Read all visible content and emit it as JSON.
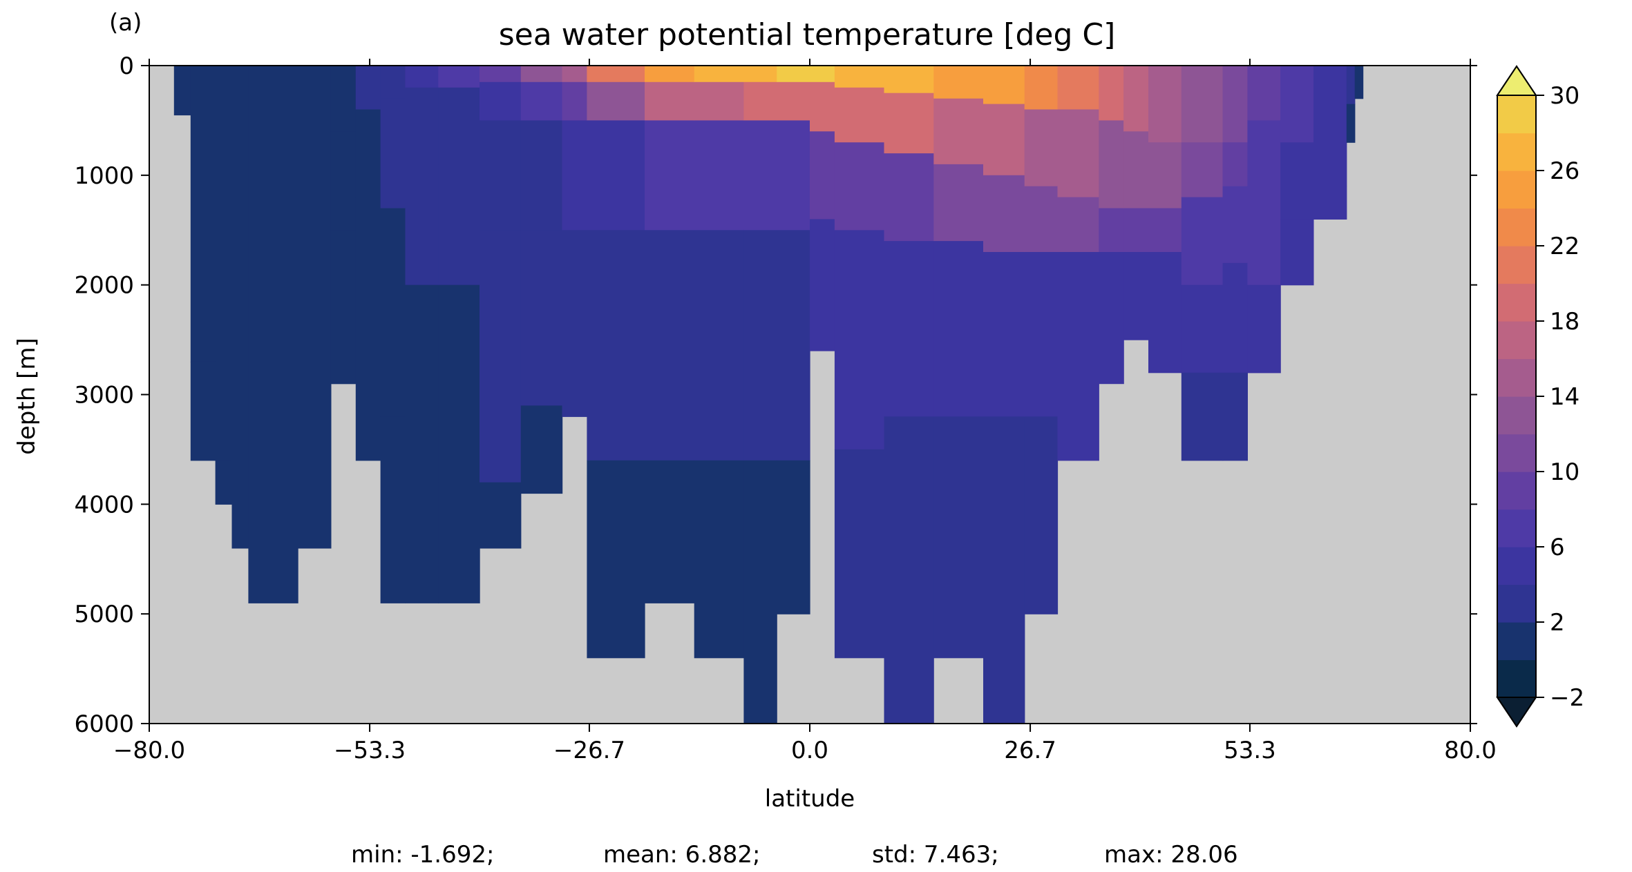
{
  "chart_data": {
    "type": "heatmap",
    "panel_label": "(a)",
    "title": "sea water potential temperature [deg C]",
    "xlabel": "latitude",
    "ylabel": "depth [m]",
    "xlim": [
      -80,
      80
    ],
    "ylim": [
      6000,
      0
    ],
    "x_ticks": [
      -80,
      -53.3,
      -26.7,
      0,
      26.7,
      53.3,
      80
    ],
    "x_tick_labels": [
      "−80.0",
      "−53.3",
      "−26.7",
      "0.0",
      "26.7",
      "53.3",
      "80.0"
    ],
    "y_ticks": [
      0,
      1000,
      2000,
      3000,
      4000,
      5000,
      6000
    ],
    "y_tick_labels": [
      "0",
      "1000",
      "2000",
      "3000",
      "4000",
      "5000",
      "6000"
    ],
    "missing_color": "#cbcbcb",
    "colorbar": {
      "levels": [
        -2,
        0,
        2,
        4,
        6,
        8,
        10,
        12,
        14,
        16,
        18,
        20,
        22,
        24,
        26,
        28,
        30
      ],
      "tick_values": [
        -2,
        2,
        6,
        10,
        14,
        18,
        22,
        26,
        30
      ],
      "tick_labels": [
        "−2",
        "2",
        "6",
        "10",
        "14",
        "18",
        "22",
        "26",
        "30"
      ],
      "colors": [
        "#0a2a4a",
        "#18336e",
        "#2f3492",
        "#3c35a0",
        "#4e3aa6",
        "#623fa2",
        "#7a4a9c",
        "#8e5595",
        "#a55c8e",
        "#bc6483",
        "#d26c73",
        "#e47a5e",
        "#f08a4a",
        "#f79e3e",
        "#f8b33e",
        "#f2cb47",
        "#eadf52"
      ],
      "under_color": "#0b1f33",
      "over_color": "#eded70",
      "extend": "both"
    },
    "sections": [
      {
        "lat": [
          -77,
          -75
        ],
        "profile": [
          [
            0,
            0.3
          ],
          [
            450,
            0.2
          ]
        ]
      },
      {
        "lat": [
          -75,
          -72
        ],
        "profile": [
          [
            0,
            0.4
          ],
          [
            2700,
            0.3
          ],
          [
            3600,
            0.2
          ]
        ]
      },
      {
        "lat": [
          -72,
          -70
        ],
        "profile": [
          [
            0,
            0.4
          ],
          [
            3600,
            0.2
          ],
          [
            4000,
            0.1
          ]
        ]
      },
      {
        "lat": [
          -70,
          -68
        ],
        "profile": [
          [
            0,
            0.5
          ],
          [
            4400,
            0.2
          ]
        ]
      },
      {
        "lat": [
          -68,
          -62
        ],
        "profile": [
          [
            0,
            0.6
          ],
          [
            4900,
            0.1
          ]
        ]
      },
      {
        "lat": [
          -62,
          -58
        ],
        "profile": [
          [
            0,
            0.6
          ],
          [
            4400,
            0.2
          ]
        ]
      },
      {
        "lat": [
          -58,
          -55
        ],
        "profile": [
          [
            0,
            1.5
          ],
          [
            600,
            1.2
          ],
          [
            1500,
            0.8
          ],
          [
            2900,
            0.3
          ]
        ]
      },
      {
        "lat": [
          -55,
          -52
        ],
        "profile": [
          [
            0,
            2
          ],
          [
            400,
            1.6
          ],
          [
            1200,
            1.2
          ],
          [
            2500,
            0.8
          ],
          [
            3600,
            0.3
          ]
        ]
      },
      {
        "lat": [
          -52,
          -49
        ],
        "profile": [
          [
            0,
            3
          ],
          [
            300,
            2.3
          ],
          [
            1300,
            1.5
          ],
          [
            3200,
            0.8
          ],
          [
            4900,
            0.2
          ]
        ]
      },
      {
        "lat": [
          -49,
          -45
        ],
        "profile": [
          [
            0,
            4
          ],
          [
            200,
            2.8
          ],
          [
            900,
            2.2
          ],
          [
            2000,
            1.5
          ],
          [
            3500,
            0.8
          ],
          [
            4900,
            0.3
          ]
        ]
      },
      {
        "lat": [
          -45,
          -40
        ],
        "profile": [
          [
            0,
            6
          ],
          [
            200,
            3.5
          ],
          [
            900,
            2.6
          ],
          [
            2000,
            1.8
          ],
          [
            3800,
            1.2
          ],
          [
            4900,
            0.5
          ]
        ]
      },
      {
        "lat": [
          -40,
          -35
        ],
        "profile": [
          [
            0,
            9
          ],
          [
            150,
            5
          ],
          [
            500,
            3.5
          ],
          [
            1500,
            2.8
          ],
          [
            3800,
            1.2
          ],
          [
            4400,
            0.6
          ]
        ]
      },
      {
        "lat": [
          -35,
          -30
        ],
        "profile": [
          [
            0,
            12
          ],
          [
            150,
            6
          ],
          [
            500,
            3.8
          ],
          [
            1500,
            2.8
          ],
          [
            3100,
            1.8
          ],
          [
            3900,
            1.3
          ]
        ]
      },
      {
        "lat": [
          -30,
          -27
        ],
        "profile": [
          [
            0,
            15
          ],
          [
            150,
            8
          ],
          [
            500,
            4
          ],
          [
            1500,
            2.8
          ],
          [
            3200,
            1.8
          ]
        ]
      },
      {
        "lat": [
          -27,
          -20
        ],
        "profile": [
          [
            0,
            20
          ],
          [
            150,
            12
          ],
          [
            500,
            5
          ],
          [
            1500,
            2.8
          ],
          [
            3600,
            1.5
          ],
          [
            5400,
            1.2
          ]
        ]
      },
      {
        "lat": [
          -20,
          -14
        ],
        "profile": [
          [
            0,
            24
          ],
          [
            150,
            16
          ],
          [
            500,
            6
          ],
          [
            1500,
            2.9
          ],
          [
            3600,
            1.5
          ],
          [
            4900,
            1.3
          ]
        ]
      },
      {
        "lat": [
          -14,
          -8
        ],
        "profile": [
          [
            0,
            26
          ],
          [
            150,
            17
          ],
          [
            500,
            6
          ],
          [
            1500,
            2.9
          ],
          [
            3600,
            1.5
          ],
          [
            5400,
            1.3
          ]
        ]
      },
      {
        "lat": [
          -8,
          -4
        ],
        "profile": [
          [
            0,
            27
          ],
          [
            150,
            18
          ],
          [
            500,
            6
          ],
          [
            1500,
            3
          ],
          [
            3600,
            1.5
          ],
          [
            6000,
            1.3
          ]
        ]
      },
      {
        "lat": [
          -4,
          0
        ],
        "profile": [
          [
            0,
            28
          ],
          [
            150,
            18
          ],
          [
            500,
            7
          ],
          [
            1500,
            3.2
          ],
          [
            3600,
            1.8
          ],
          [
            5000,
            1.4
          ]
        ]
      },
      {
        "lat": [
          0,
          3
        ],
        "profile": [
          [
            0,
            28
          ],
          [
            150,
            18
          ],
          [
            600,
            8
          ],
          [
            1400,
            4.1
          ],
          [
            2600,
            3
          ]
        ]
      },
      {
        "lat": [
          3,
          9
        ],
        "profile": [
          [
            0,
            27
          ],
          [
            200,
            19
          ],
          [
            700,
            9
          ],
          [
            1500,
            4.5
          ],
          [
            3500,
            2.2
          ],
          [
            5400,
            1.4
          ]
        ]
      },
      {
        "lat": [
          9,
          15
        ],
        "profile": [
          [
            0,
            26
          ],
          [
            250,
            18
          ],
          [
            800,
            9
          ],
          [
            1600,
            4.5
          ],
          [
            3200,
            2.2
          ],
          [
            6000,
            1.4
          ]
        ]
      },
      {
        "lat": [
          15,
          21
        ],
        "profile": [
          [
            0,
            25
          ],
          [
            300,
            17
          ],
          [
            900,
            10
          ],
          [
            1600,
            4.8
          ],
          [
            3200,
            2.2
          ],
          [
            5400,
            1.4
          ]
        ]
      },
      {
        "lat": [
          21,
          26
        ],
        "profile": [
          [
            0,
            24
          ],
          [
            350,
            16
          ],
          [
            1000,
            10
          ],
          [
            1700,
            5
          ],
          [
            3200,
            2.2
          ],
          [
            6000,
            1.4
          ]
        ]
      },
      {
        "lat": [
          26,
          30
        ],
        "profile": [
          [
            0,
            22
          ],
          [
            400,
            14
          ],
          [
            1100,
            11
          ],
          [
            1700,
            5
          ],
          [
            3200,
            2.2
          ],
          [
            5000,
            1.4
          ]
        ]
      },
      {
        "lat": [
          30,
          35
        ],
        "profile": [
          [
            0,
            20
          ],
          [
            400,
            14
          ],
          [
            1200,
            10
          ],
          [
            1700,
            5
          ],
          [
            3600,
            2
          ]
        ]
      },
      {
        "lat": [
          35,
          38
        ],
        "profile": [
          [
            0,
            18
          ],
          [
            500,
            13
          ],
          [
            1300,
            9
          ],
          [
            1700,
            5
          ],
          [
            2900,
            2.5
          ]
        ]
      },
      {
        "lat": [
          38,
          41
        ],
        "profile": [
          [
            0,
            16
          ],
          [
            600,
            12
          ],
          [
            1300,
            8
          ],
          [
            1700,
            4.2
          ],
          [
            2500,
            3
          ]
        ]
      },
      {
        "lat": [
          41,
          45
        ],
        "profile": [
          [
            0,
            14
          ],
          [
            700,
            12
          ],
          [
            1300,
            8
          ],
          [
            1700,
            4.2
          ],
          [
            2800,
            3
          ]
        ]
      },
      {
        "lat": [
          45,
          50
        ],
        "profile": [
          [
            0,
            12
          ],
          [
            700,
            10
          ],
          [
            1200,
            7
          ],
          [
            2000,
            4.2
          ],
          [
            2800,
            3
          ],
          [
            3600,
            2.5
          ]
        ]
      },
      {
        "lat": [
          50,
          53
        ],
        "profile": [
          [
            0,
            11
          ],
          [
            700,
            9
          ],
          [
            1100,
            7
          ],
          [
            1800,
            4.2
          ],
          [
            2800,
            3
          ],
          [
            3600,
            2.5
          ]
        ]
      },
      {
        "lat": [
          53,
          57
        ],
        "profile": [
          [
            0,
            9
          ],
          [
            500,
            7.5
          ],
          [
            1000,
            6.5
          ],
          [
            2000,
            4.2
          ],
          [
            2800,
            3
          ]
        ]
      },
      {
        "lat": [
          57,
          61
        ],
        "profile": [
          [
            0,
            6
          ],
          [
            700,
            4.5
          ],
          [
            1400,
            4.2
          ],
          [
            2000,
            3.1
          ]
        ]
      },
      {
        "lat": [
          61,
          65
        ],
        "profile": [
          [
            0,
            4.5
          ],
          [
            700,
            4
          ],
          [
            1100,
            4
          ],
          [
            1400,
            3.5
          ]
        ]
      },
      {
        "lat": [
          65,
          66
        ],
        "profile": [
          [
            0,
            2.5
          ],
          [
            350,
            1.5
          ],
          [
            700,
            1
          ]
        ]
      },
      {
        "lat": [
          66,
          67
        ],
        "profile": [
          [
            0,
            0.5
          ],
          [
            300,
            0.2
          ]
        ]
      }
    ],
    "stats": {
      "min": "min: -1.692;",
      "mean": "mean: 6.882;",
      "std": "std: 7.463;",
      "max": "max: 28.06"
    }
  }
}
